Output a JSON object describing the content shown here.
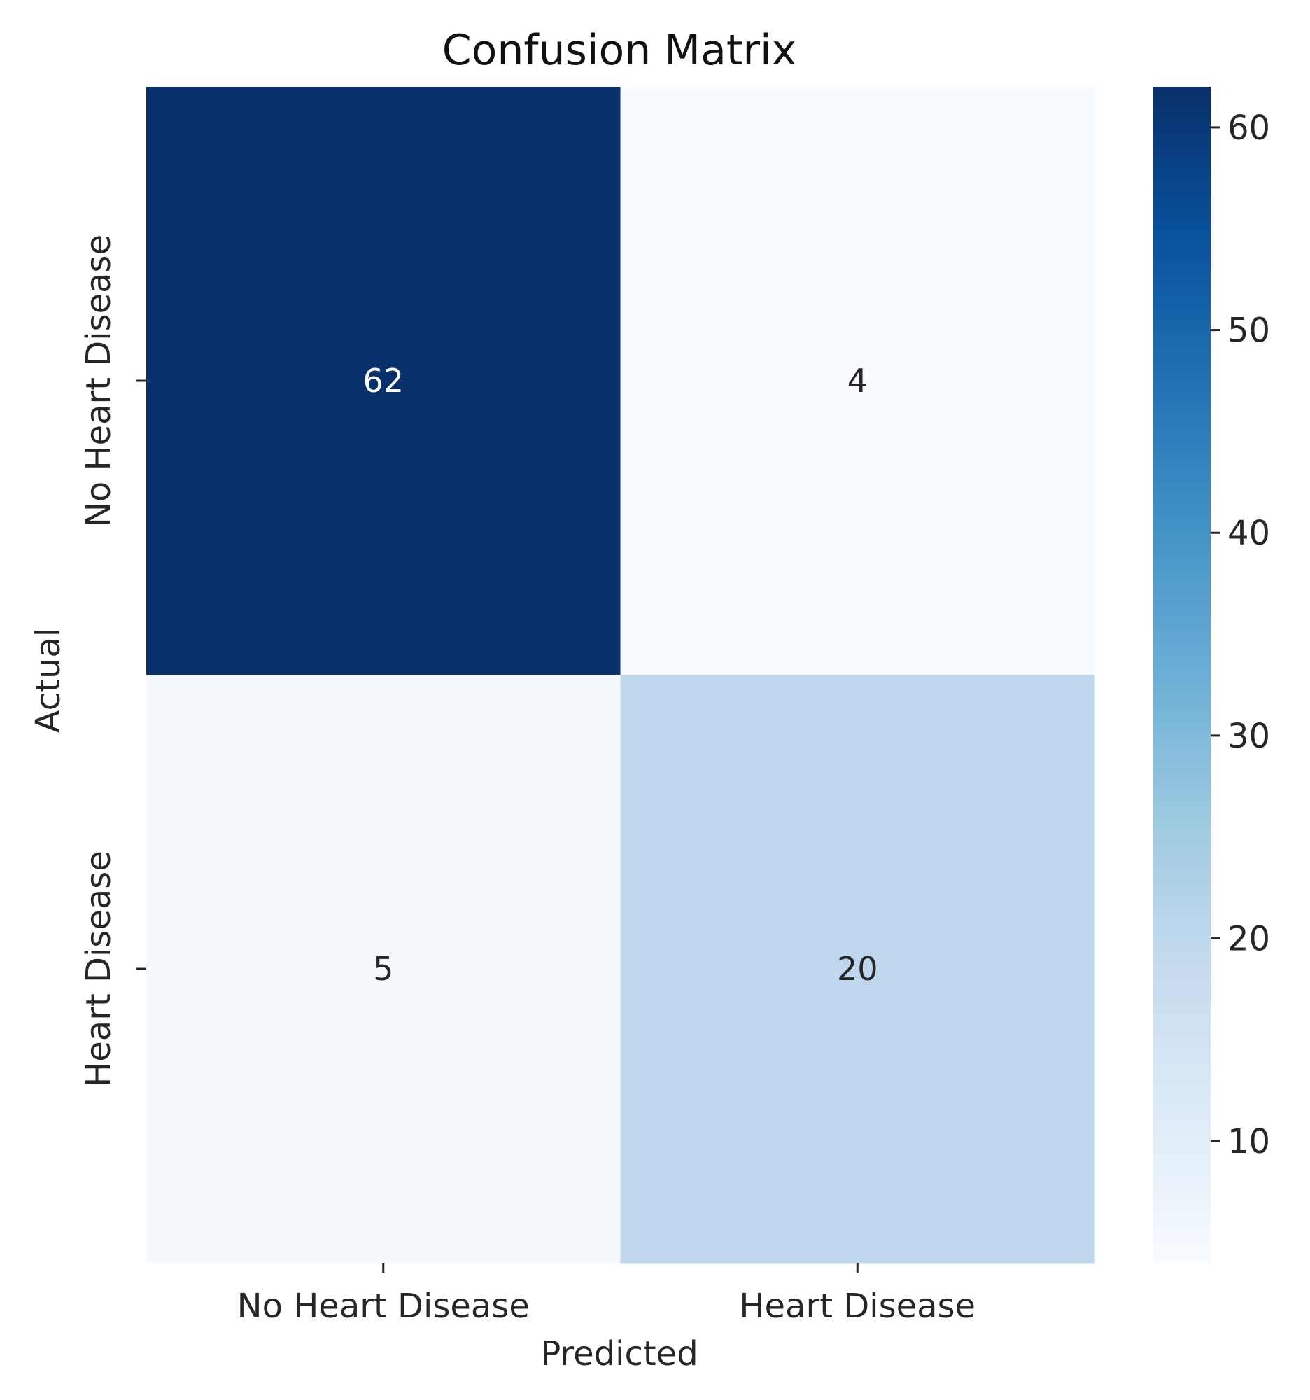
{
  "chart_data": {
    "type": "heatmap",
    "title": "Confusion Matrix",
    "xlabel": "Predicted",
    "ylabel": "Actual",
    "x_categories": [
      "No Heart Disease",
      "Heart Disease"
    ],
    "y_categories": [
      "No Heart Disease",
      "Heart Disease"
    ],
    "values": [
      [
        62,
        4
      ],
      [
        5,
        20
      ]
    ],
    "colorbar": {
      "colormap": "Blues",
      "range": [
        4,
        62
      ],
      "ticks": [
        10,
        20,
        30,
        40,
        50,
        60
      ]
    },
    "colors": {
      "annotation_dark": "#ffffff",
      "annotation_light": "#262626"
    }
  }
}
